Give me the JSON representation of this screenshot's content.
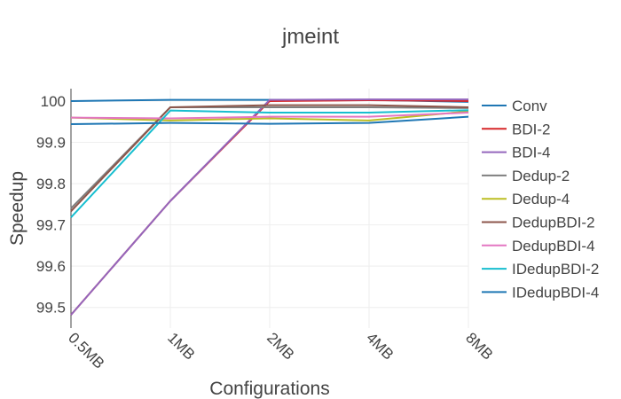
{
  "chart_data": {
    "type": "line",
    "title": "jmeint",
    "xlabel": "Configurations",
    "ylabel": "Speedup",
    "categories": [
      "0.5MB",
      "1MB",
      "2MB",
      "4MB",
      "8MB"
    ],
    "ylim": [
      99.45,
      100.03
    ],
    "yticks": [
      99.5,
      99.6,
      99.7,
      99.8,
      99.9,
      100
    ],
    "ytick_labels": [
      "99.5",
      "99.6",
      "99.7",
      "99.8",
      "99.9",
      "100"
    ],
    "grid": true,
    "legend_position": "right",
    "series": [
      {
        "name": "Conv",
        "color": "#1f77b4",
        "values": [
          100.0,
          100.003,
          100.003,
          100.003,
          99.998
        ]
      },
      {
        "name": "BDI-2",
        "color": "#d62728",
        "values": [
          99.482,
          99.758,
          100.0,
          100.002,
          100.0
        ]
      },
      {
        "name": "BDI-4",
        "color": "#9467bd",
        "values": [
          99.482,
          99.758,
          100.003,
          100.004,
          100.004
        ]
      },
      {
        "name": "Dedup-2",
        "color": "#7f7f7f",
        "values": [
          99.74,
          99.985,
          99.985,
          99.985,
          99.983
        ]
      },
      {
        "name": "Dedup-4",
        "color": "#bcbd22",
        "values": [
          99.96,
          99.953,
          99.958,
          99.953,
          99.975
        ]
      },
      {
        "name": "DedupBDI-2",
        "color": "#8c564b",
        "values": [
          99.733,
          99.985,
          99.99,
          99.99,
          99.985
        ]
      },
      {
        "name": "DedupBDI-4",
        "color": "#e377c2",
        "values": [
          99.96,
          99.958,
          99.962,
          99.962,
          99.972
        ]
      },
      {
        "name": "IDedupBDI-2",
        "color": "#17becf",
        "values": [
          99.718,
          99.977,
          99.972,
          99.972,
          99.978
        ]
      },
      {
        "name": "IDedupBDI-4",
        "color": "#1f77b4",
        "values": [
          99.944,
          99.947,
          99.945,
          99.947,
          99.962
        ]
      }
    ]
  }
}
